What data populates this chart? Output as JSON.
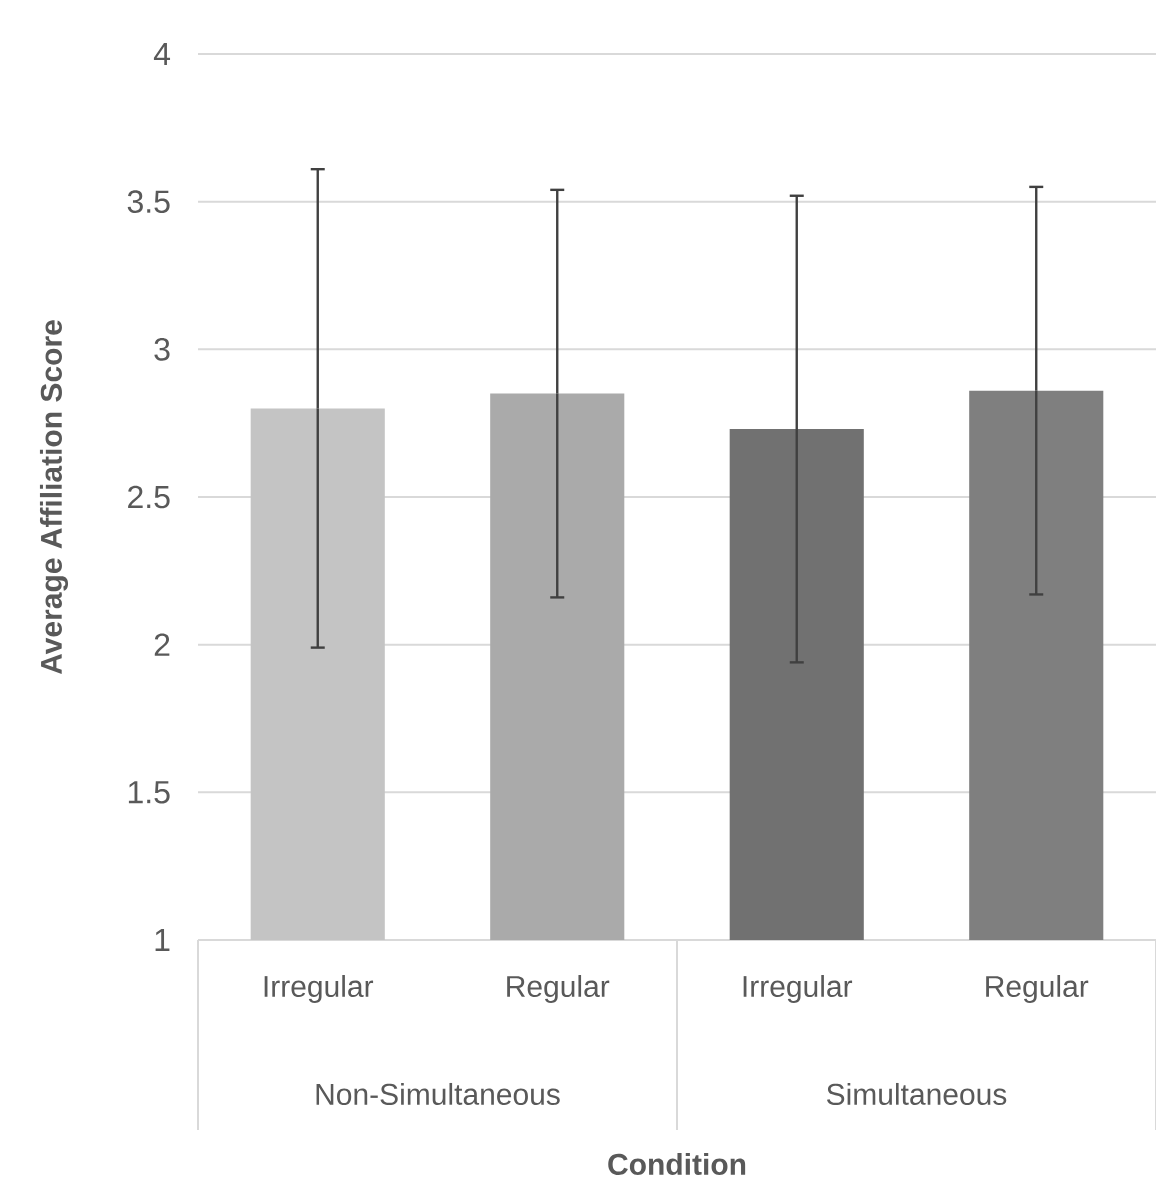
{
  "chart_data": {
    "type": "bar",
    "xlabel": "Condition",
    "ylabel": "Average Affiliation Score",
    "categories": [
      "Irregular",
      "Regular",
      "Irregular",
      "Regular"
    ],
    "values": [
      2.8,
      2.85,
      2.73,
      2.86
    ],
    "errors": [
      0.81,
      0.69,
      0.79,
      0.69
    ],
    "colors": [
      "#c4c4c4",
      "#aaaaaa",
      "#717171",
      "#7f7f7f"
    ],
    "annotations": [
      "Non-Simultaneous",
      "Simultaneous"
    ],
    "ylim": [
      1,
      4
    ],
    "yticks": [
      1,
      1.5,
      2,
      2.5,
      3,
      3.5,
      4
    ],
    "grid": "y"
  }
}
